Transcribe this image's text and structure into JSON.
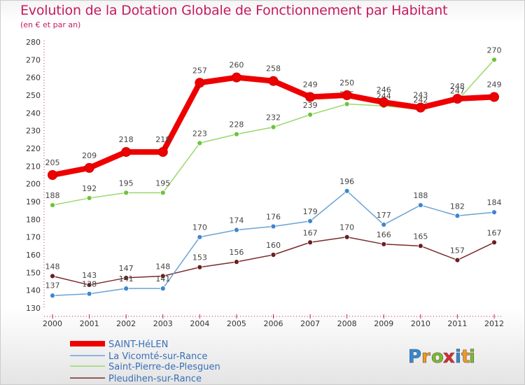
{
  "header": {
    "title": "Evolution de la Dotation Globale de Fonctionnement par Habitant",
    "subtitle": "(en € et par an)"
  },
  "logo": {
    "letters": [
      "P",
      "r",
      "o",
      "x",
      "i",
      "t",
      "i"
    ],
    "colors": [
      "#2e8bd8",
      "#f29a1e",
      "#7dbb2b",
      "#e0282e",
      "#2e8bd8",
      "#f29a1e",
      "#7dbb2b"
    ]
  },
  "chart_data": {
    "type": "line",
    "x": [
      "2000",
      "2001",
      "2002",
      "2003",
      "2004",
      "2005",
      "2006",
      "2007",
      "2008",
      "2009",
      "2010",
      "2011",
      "2012"
    ],
    "ylim": [
      130,
      280
    ],
    "yticks": [
      130,
      140,
      150,
      160,
      170,
      180,
      190,
      200,
      210,
      220,
      230,
      240,
      250,
      260,
      270,
      280
    ],
    "grid": false,
    "legend_position": "bottom-left",
    "series": [
      {
        "name": "SAINT-HéLEN",
        "color": "#ee0000",
        "marker": "#ee0000",
        "values": [
          205,
          209,
          218,
          218,
          257,
          260,
          258,
          249,
          250,
          246,
          243,
          248,
          249
        ]
      },
      {
        "name": "La Vicomté-sur-Rance",
        "color": "#6aa3d5",
        "marker": "#3f86cf",
        "values": [
          137,
          138,
          141,
          141,
          170,
          174,
          176,
          179,
          196,
          177,
          188,
          182,
          184
        ]
      },
      {
        "name": "Saint-Pierre-de-Plesguen",
        "color": "#9ad86a",
        "marker": "#6fc23a",
        "values": [
          188,
          192,
          195,
          195,
          223,
          228,
          232,
          239,
          245,
          244,
          242,
          247,
          270
        ]
      },
      {
        "name": "Pleudihen-sur-Rance",
        "color": "#7a2b2b",
        "marker": "#6a1f1f",
        "values": [
          148,
          143,
          147,
          148,
          153,
          156,
          160,
          167,
          170,
          166,
          165,
          157,
          167
        ]
      }
    ]
  }
}
